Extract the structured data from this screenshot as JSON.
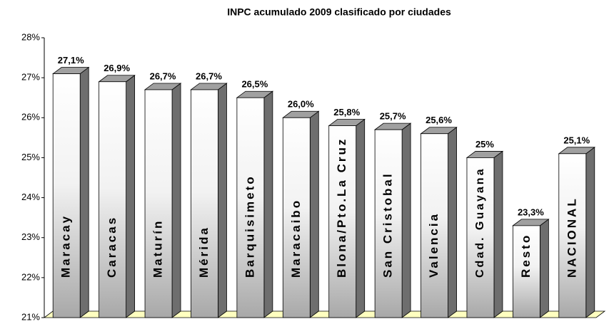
{
  "chart_data": {
    "type": "bar3d",
    "title": "INPC acumulado 2009 clasificado por ciudades",
    "categories": [
      "Maracay",
      "Caracas",
      "Maturín",
      "Mérida",
      "Barquisimeto",
      "Maracaibo",
      "Blona/Pto.La Cruz",
      "San Cristobal",
      "Valencia",
      "Cdad. Guayana",
      "Resto",
      "NACIONAL"
    ],
    "values": [
      27.1,
      26.9,
      26.7,
      26.7,
      26.5,
      26.0,
      25.8,
      25.7,
      25.6,
      25,
      23.3,
      25.1
    ],
    "value_labels": [
      "27,1%",
      "26,9%",
      "26,7%",
      "26,7%",
      "26,5%",
      "26,0%",
      "25,8%",
      "25,7%",
      "25,6%",
      "25%",
      "23,3%",
      "25,1%"
    ],
    "ylim": [
      21,
      28
    ],
    "yticks": [
      {
        "value": 21,
        "label": "21%"
      },
      {
        "value": 22,
        "label": "22%"
      },
      {
        "value": 23,
        "label": "23%"
      },
      {
        "value": 24,
        "label": "24%"
      },
      {
        "value": 25,
        "label": "25%"
      },
      {
        "value": 26,
        "label": "26%"
      },
      {
        "value": 27,
        "label": "27%"
      },
      {
        "value": 28,
        "label": "28%"
      }
    ],
    "color": "#d0d0d0",
    "floor_color": "#ffffc0",
    "grid": false
  }
}
